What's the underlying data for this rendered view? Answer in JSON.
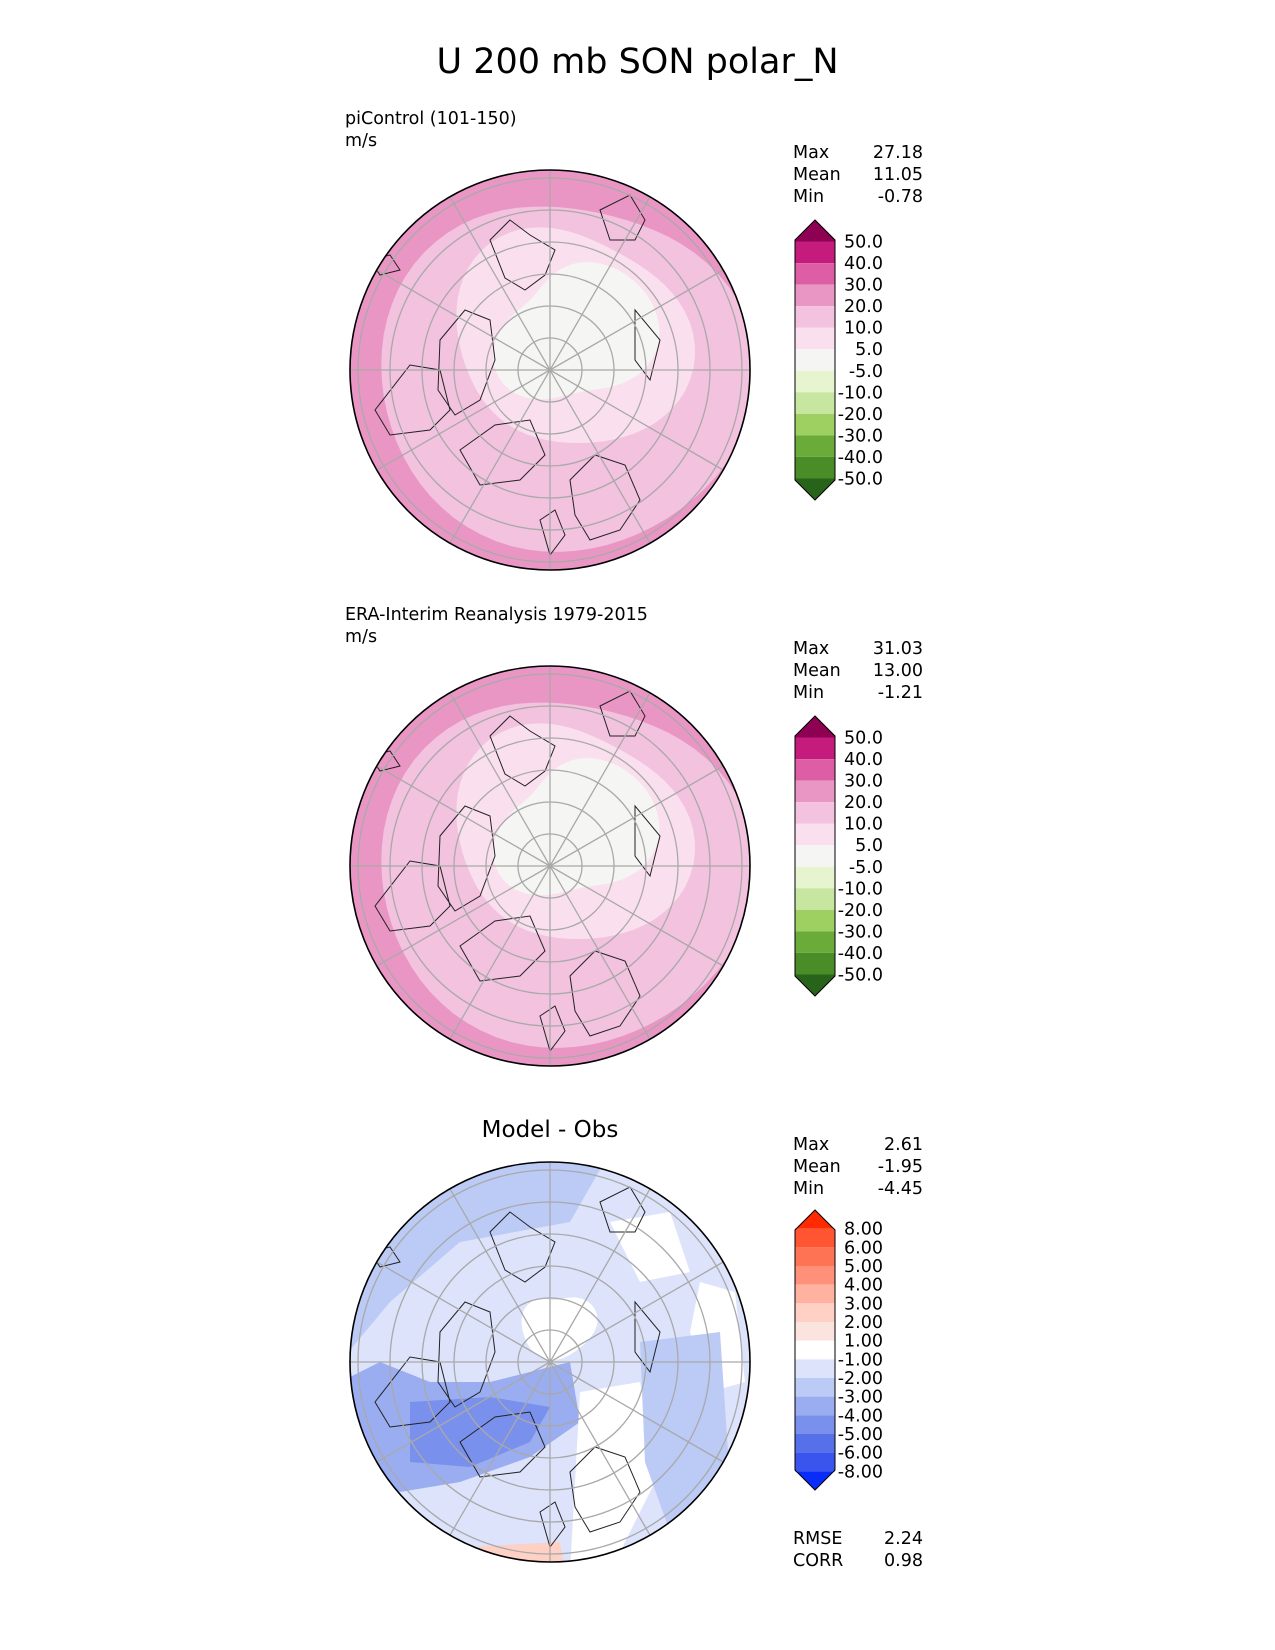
{
  "figure": {
    "title": "U 200 mb SON polar_N"
  },
  "panels": [
    {
      "id": "model",
      "label": "piControl (101-150)",
      "units": "m/s",
      "stats": {
        "max_label": "Max",
        "max": "27.18",
        "mean_label": "Mean",
        "mean": "11.05",
        "min_label": "Min",
        "min": "-0.78"
      }
    },
    {
      "id": "obs",
      "label": "ERA-Interim Reanalysis 1979-2015",
      "units": "m/s",
      "stats": {
        "max_label": "Max",
        "max": "31.03",
        "mean_label": "Mean",
        "mean": "13.00",
        "min_label": "Min",
        "min": "-1.21"
      }
    },
    {
      "id": "diff",
      "title": "Model - Obs",
      "stats": {
        "max_label": "Max",
        "max": "2.61",
        "mean_label": "Mean",
        "mean": "-1.95",
        "min_label": "Min",
        "min": "-4.45"
      },
      "metrics": {
        "rmse_label": "RMSE",
        "rmse": "2.24",
        "corr_label": "CORR",
        "corr": "0.98"
      }
    }
  ],
  "chart_data": [
    {
      "type": "heatmap",
      "projection": "polar stereographic, north pole",
      "title": "piControl (101-150)",
      "units": "m/s",
      "colorbar": {
        "ticks": [
          "50.0",
          "40.0",
          "30.0",
          "20.0",
          "10.0",
          "5.0",
          "-5.0",
          "-10.0",
          "-20.0",
          "-30.0",
          "-40.0",
          "-50.0"
        ],
        "colors": [
          "#8e0152",
          "#c51b7d",
          "#de5ea5",
          "#ea96c5",
          "#f2c2df",
          "#fae0ee",
          "#f5f5f3",
          "#e6f5d0",
          "#c7e7a0",
          "#9dd060",
          "#6aab3a",
          "#4a8c28",
          "#276419"
        ]
      },
      "summary": {
        "max": 27.18,
        "mean": 11.05,
        "min": -0.78
      }
    },
    {
      "type": "heatmap",
      "projection": "polar stereographic, north pole",
      "title": "ERA-Interim Reanalysis 1979-2015",
      "units": "m/s",
      "colorbar": {
        "ticks": [
          "50.0",
          "40.0",
          "30.0",
          "20.0",
          "10.0",
          "5.0",
          "-5.0",
          "-10.0",
          "-20.0",
          "-30.0",
          "-40.0",
          "-50.0"
        ],
        "colors": [
          "#8e0152",
          "#c51b7d",
          "#de5ea5",
          "#ea96c5",
          "#f2c2df",
          "#fae0ee",
          "#f5f5f3",
          "#e6f5d0",
          "#c7e7a0",
          "#9dd060",
          "#6aab3a",
          "#4a8c28",
          "#276419"
        ]
      },
      "summary": {
        "max": 31.03,
        "mean": 13.0,
        "min": -1.21
      }
    },
    {
      "type": "heatmap",
      "projection": "polar stereographic, north pole",
      "title": "Model - Obs",
      "colorbar": {
        "ticks": [
          "8.00",
          "6.00",
          "5.00",
          "4.00",
          "3.00",
          "2.00",
          "1.00",
          "-1.00",
          "-2.00",
          "-3.00",
          "-4.00",
          "-5.00",
          "-6.00",
          "-8.00"
        ],
        "colors": [
          "#ff2a00",
          "#ff5533",
          "#ff7355",
          "#ff917a",
          "#ffb2a0",
          "#ffd0c4",
          "#fbe3de",
          "#ffffff",
          "#dce3fb",
          "#bccaf6",
          "#9aadf1",
          "#7a90ed",
          "#5670ea",
          "#3a55ee",
          "#0a2cfa"
        ]
      },
      "summary": {
        "max": 2.61,
        "mean": -1.95,
        "min": -4.45,
        "rmse": 2.24,
        "corr": 0.98
      }
    }
  ]
}
